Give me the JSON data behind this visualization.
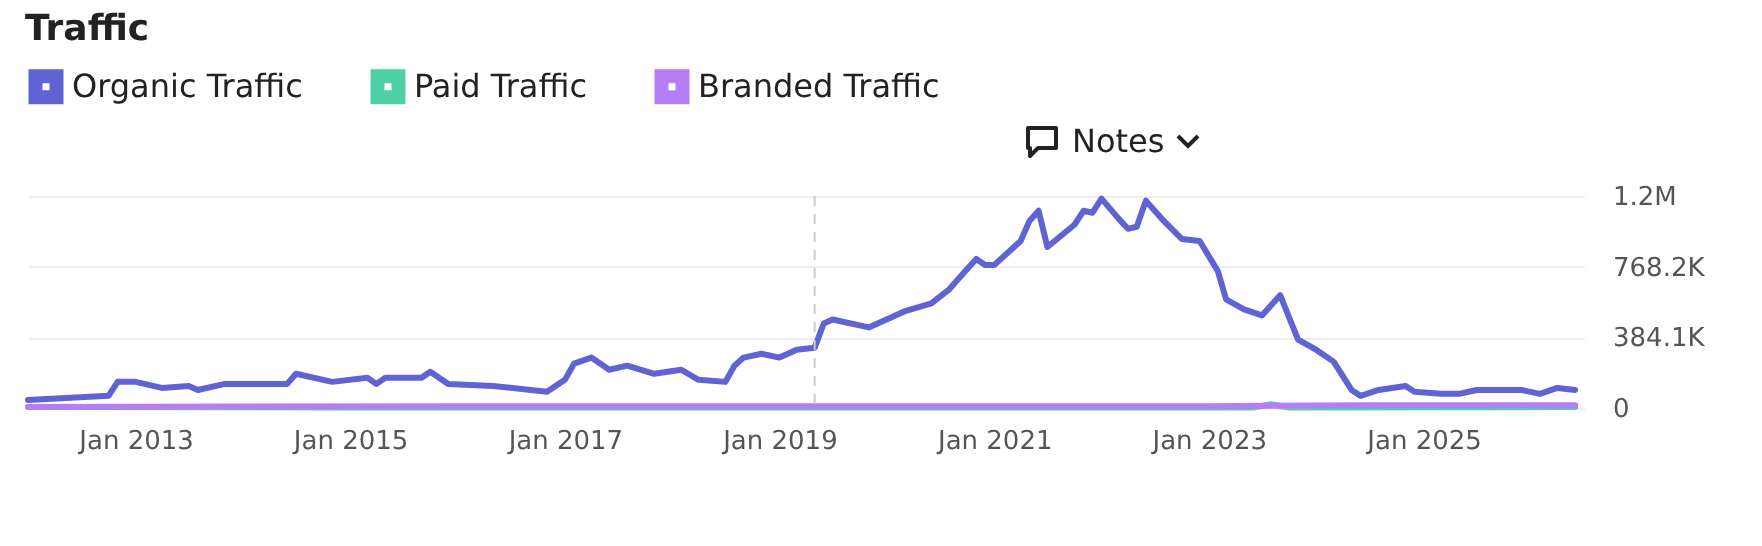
{
  "chart_data": {
    "type": "line",
    "title": "Traffic",
    "annotations": [
      "Notes"
    ],
    "xlim": [
      "2012-01",
      "2026-07"
    ],
    "xticks": [
      {
        "value": "2013-01",
        "label": "Jan 2013"
      },
      {
        "value": "2015-01",
        "label": "Jan 2015"
      },
      {
        "value": "2017-01",
        "label": "Jan 2017"
      },
      {
        "value": "2019-01",
        "label": "Jan 2019"
      },
      {
        "value": "2021-01",
        "label": "Jan 2021"
      },
      {
        "value": "2023-01",
        "label": "Jan 2023"
      },
      {
        "value": "2025-01",
        "label": "Jan 2025"
      }
    ],
    "ylim": [
      0,
      1152300
    ],
    "yticks": [
      0,
      {
        "value": 384100,
        "label": "384.1K"
      },
      {
        "value": 768200,
        "label": "768.2K"
      },
      {
        "value": 1152300,
        "label": "1.2M"
      }
    ],
    "grid": "y",
    "legend": "top left",
    "line_style": "solid",
    "ref_lines": [
      {
        "axis": "x",
        "value": "2019-05",
        "color": "#cccccc",
        "line_style": "dashed"
      }
    ],
    "series": [
      {
        "name": "Organic Traffic",
        "color": "#5f63d4",
        "x": [
          "2012-01",
          "2012-10",
          "2012-11",
          "2013-01",
          "2013-04",
          "2013-07",
          "2013-08",
          "2013-11",
          "2014-06",
          "2014-07",
          "2014-11",
          "2015-03",
          "2015-04",
          "2015-05",
          "2015-09",
          "2015-10",
          "2015-12",
          "2016-05",
          "2016-11",
          "2017-01",
          "2017-02",
          "2017-04",
          "2017-06",
          "2017-08",
          "2017-11",
          "2018-02",
          "2018-04",
          "2018-07",
          "2018-08",
          "2018-09",
          "2018-11",
          "2019-01",
          "2019-03",
          "2019-05",
          "2019-06",
          "2019-07",
          "2019-11",
          "2020-03",
          "2020-06",
          "2020-08",
          "2020-10",
          "2020-11",
          "2020-12",
          "2021-01",
          "2021-04",
          "2021-05",
          "2021-06",
          "2021-07",
          "2021-10",
          "2021-11",
          "2021-12",
          "2022-01",
          "2022-03",
          "2022-04",
          "2022-05",
          "2022-06",
          "2022-08",
          "2022-10",
          "2022-12",
          "2023-02",
          "2023-03",
          "2023-05",
          "2023-07",
          "2023-09",
          "2023-11",
          "2024-01",
          "2024-03",
          "2024-05",
          "2024-06",
          "2024-08",
          "2024-11",
          "2024-12",
          "2025-03",
          "2025-05",
          "2025-07",
          "2025-12",
          "2026-02",
          "2026-04",
          "2026-06"
        ],
        "values": [
          44000,
          66000,
          142000,
          142000,
          109000,
          120000,
          98000,
          131000,
          131000,
          186000,
          142000,
          164000,
          131000,
          164000,
          164000,
          197000,
          131000,
          120000,
          88000,
          153000,
          241000,
          274000,
          208000,
          230000,
          186000,
          208000,
          153000,
          142000,
          230000,
          274000,
          295000,
          274000,
          317000,
          328000,
          459000,
          481000,
          438000,
          525000,
          569000,
          645000,
          755000,
          810000,
          777000,
          777000,
          908000,
          1017000,
          1072000,
          875000,
          996000,
          1072000,
          1061000,
          1138000,
          1028000,
          974000,
          985000,
          1127000,
          1017000,
          919000,
          908000,
          744000,
          591000,
          536000,
          503000,
          613000,
          372000,
          317000,
          252000,
          98000,
          66000,
          98000,
          120000,
          88000,
          77000,
          77000,
          98000,
          98000,
          77000,
          109000,
          98000
        ]
      },
      {
        "name": "Paid Traffic",
        "color": "#4fd1a8",
        "x": [
          "2012-01",
          "2015-01",
          "2019-01",
          "2023-06",
          "2023-08",
          "2023-10",
          "2026-06"
        ],
        "values": [
          5000,
          3000,
          3000,
          3000,
          20000,
          3000,
          5000
        ]
      },
      {
        "name": "Branded Traffic",
        "color": "#b57ef5",
        "x": [
          "2012-01",
          "2016-01",
          "2020-01",
          "2023-01",
          "2024-06",
          "2026-06"
        ],
        "values": [
          5000,
          10000,
          10000,
          10000,
          15000,
          15000
        ]
      }
    ]
  }
}
